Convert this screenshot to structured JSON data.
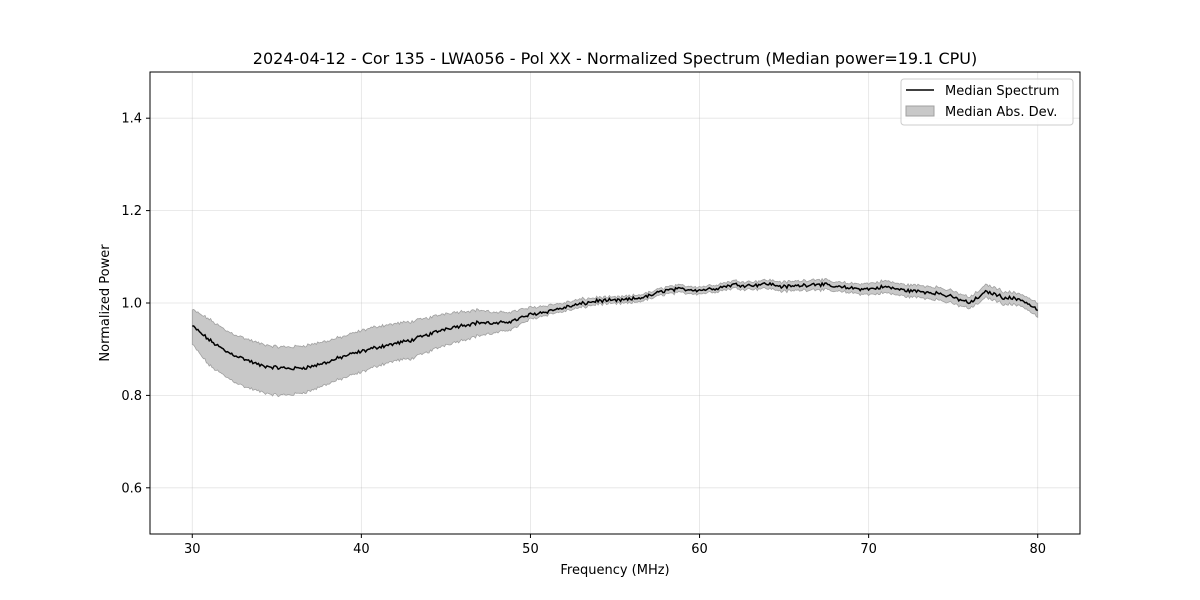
{
  "chart_data": {
    "type": "line",
    "title": "2024-04-12 - Cor 135 - LWA056 - Pol XX - Normalized Spectrum (Median power=19.1 CPU)",
    "xlabel": "Frequency (MHz)",
    "ylabel": "Normalized Power",
    "xlim": [
      27.5,
      82.5
    ],
    "ylim": [
      0.5,
      1.5
    ],
    "xticks": [
      30,
      40,
      50,
      60,
      70,
      80
    ],
    "yticks": [
      0.6,
      0.8,
      1.0,
      1.2,
      1.4
    ],
    "xtick_labels": [
      "30",
      "40",
      "50",
      "60",
      "70",
      "80"
    ],
    "ytick_labels": [
      "0.6",
      "0.8",
      "1.0",
      "1.2",
      "1.4"
    ],
    "grid": true,
    "legend_position": "top-right",
    "legend": [
      "Median Spectrum",
      "Median Abs. Dev."
    ],
    "colors": {
      "line": "#000000",
      "band": "#c8c8c8",
      "band_edge": "#a0a0a0"
    },
    "series": [
      {
        "name": "Median Spectrum",
        "x": [
          30,
          31,
          32,
          33,
          34,
          35,
          36,
          37,
          38,
          39,
          40,
          41,
          42,
          43,
          44,
          45,
          46,
          47,
          48,
          49,
          50,
          51,
          52,
          53,
          54,
          55,
          56,
          57,
          58,
          59,
          60,
          61,
          62,
          63,
          64,
          65,
          66,
          67,
          68,
          69,
          70,
          71,
          72,
          73,
          74,
          75,
          76,
          77,
          78,
          79,
          80
        ],
        "values": [
          0.95,
          0.92,
          0.895,
          0.88,
          0.865,
          0.86,
          0.858,
          0.862,
          0.872,
          0.885,
          0.895,
          0.905,
          0.912,
          0.92,
          0.932,
          0.945,
          0.952,
          0.958,
          0.955,
          0.962,
          0.975,
          0.982,
          0.99,
          0.998,
          1.005,
          1.005,
          1.008,
          1.015,
          1.028,
          1.03,
          1.028,
          1.032,
          1.04,
          1.038,
          1.042,
          1.035,
          1.038,
          1.042,
          1.035,
          1.032,
          1.03,
          1.035,
          1.028,
          1.025,
          1.022,
          1.012,
          1.0,
          1.025,
          1.012,
          1.008,
          0.985
        ],
        "mad_lower": [
          0.91,
          0.865,
          0.84,
          0.82,
          0.808,
          0.8,
          0.802,
          0.81,
          0.825,
          0.838,
          0.85,
          0.865,
          0.875,
          0.88,
          0.895,
          0.91,
          0.92,
          0.93,
          0.935,
          0.945,
          0.965,
          0.975,
          0.982,
          0.99,
          0.998,
          0.998,
          1.0,
          1.008,
          1.02,
          1.022,
          1.02,
          1.025,
          1.032,
          1.03,
          1.032,
          1.025,
          1.028,
          1.03,
          1.025,
          1.022,
          1.018,
          1.022,
          1.015,
          1.012,
          1.008,
          0.998,
          0.988,
          1.012,
          0.998,
          0.995,
          0.97
        ],
        "mad_upper": [
          0.985,
          0.965,
          0.94,
          0.925,
          0.912,
          0.905,
          0.905,
          0.91,
          0.918,
          0.928,
          0.94,
          0.95,
          0.955,
          0.96,
          0.968,
          0.978,
          0.982,
          0.985,
          0.978,
          0.982,
          0.99,
          0.995,
          1.0,
          1.008,
          1.012,
          1.012,
          1.015,
          1.022,
          1.035,
          1.038,
          1.035,
          1.04,
          1.048,
          1.046,
          1.05,
          1.045,
          1.048,
          1.052,
          1.045,
          1.042,
          1.042,
          1.048,
          1.04,
          1.038,
          1.035,
          1.025,
          1.012,
          1.04,
          1.025,
          1.02,
          1.0
        ]
      }
    ]
  }
}
